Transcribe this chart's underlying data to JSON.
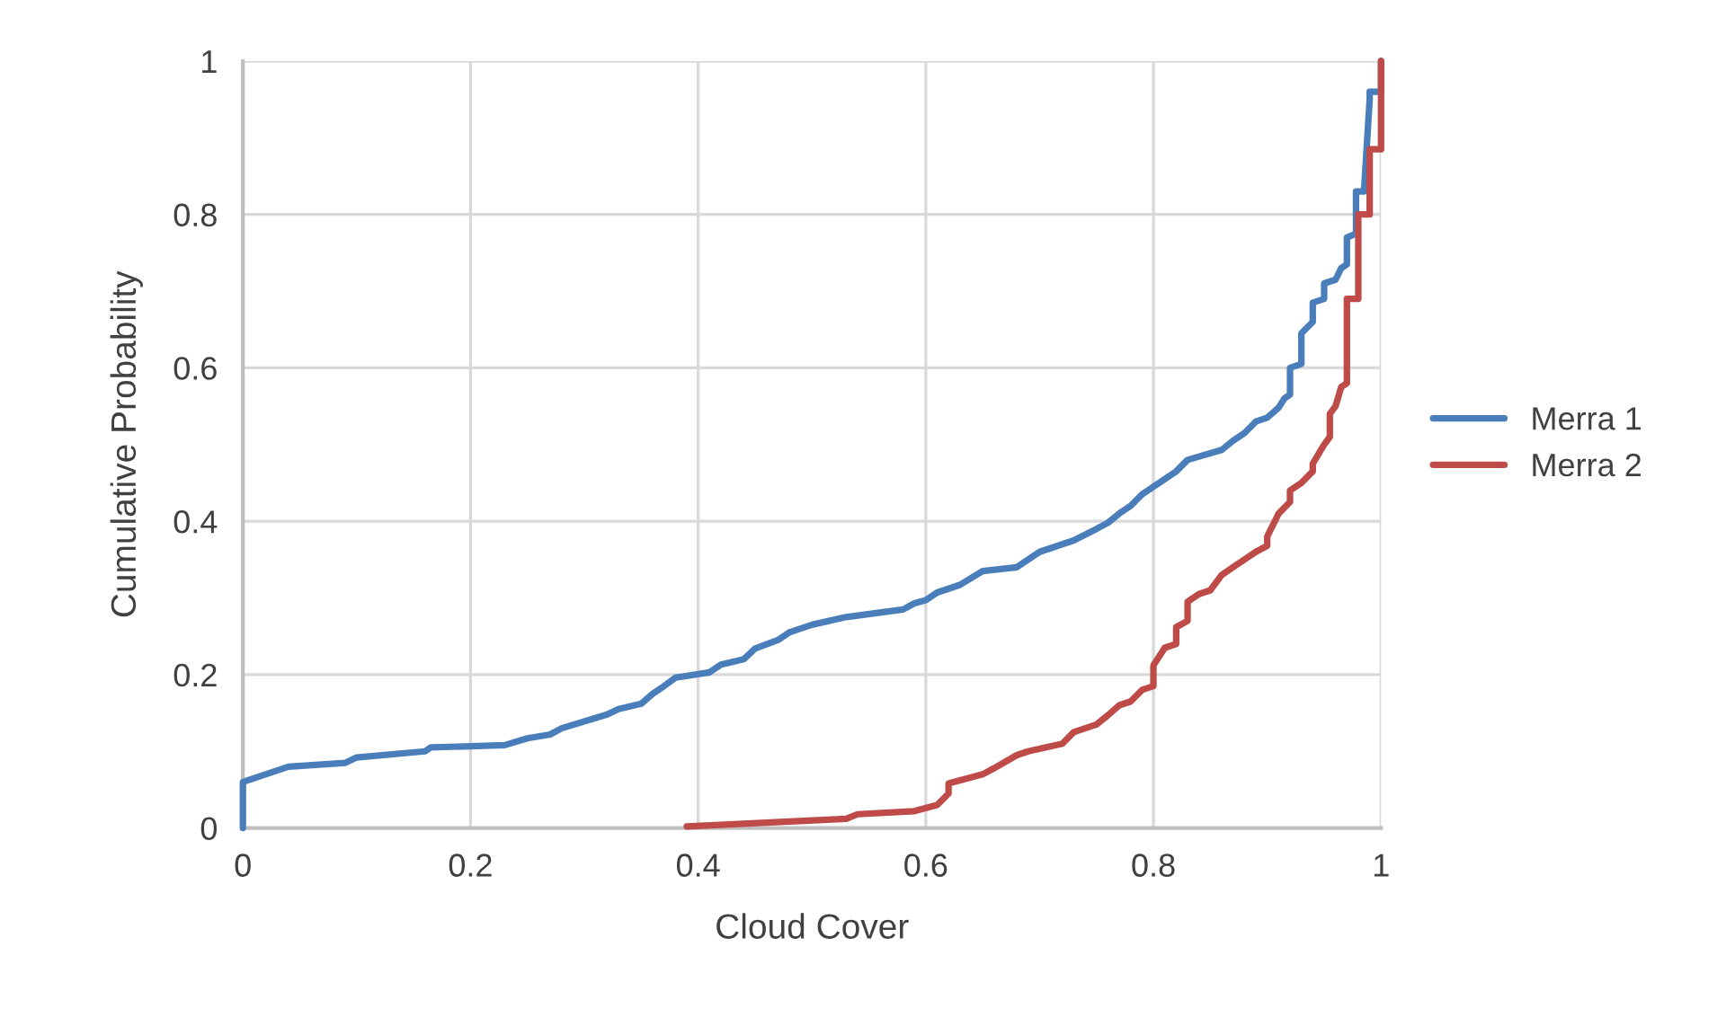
{
  "chart_data": {
    "type": "line",
    "xlabel": "Cloud Cover",
    "ylabel": "Cumulative Probability",
    "xlim": [
      0,
      1
    ],
    "ylim": [
      0,
      1
    ],
    "xticks": [
      0,
      0.2,
      0.4,
      0.6,
      0.8,
      1
    ],
    "yticks": [
      0,
      0.2,
      0.4,
      0.6,
      0.8,
      1
    ],
    "grid": true,
    "legend": "right",
    "marker": "none",
    "line_style": "solid",
    "series": [
      {
        "name": "Merra 1",
        "color": "#4a7ebb",
        "x": [
          0,
          0,
          0.04,
          0.09,
          0.1,
          0.16,
          0.165,
          0.23,
          0.25,
          0.27,
          0.28,
          0.32,
          0.33,
          0.35,
          0.36,
          0.37,
          0.38,
          0.41,
          0.42,
          0.44,
          0.45,
          0.47,
          0.48,
          0.5,
          0.53,
          0.58,
          0.59,
          0.6,
          0.61,
          0.63,
          0.65,
          0.68,
          0.69,
          0.7,
          0.73,
          0.75,
          0.76,
          0.77,
          0.78,
          0.79,
          0.8,
          0.81,
          0.82,
          0.83,
          0.86,
          0.87,
          0.88,
          0.89,
          0.9,
          0.91,
          0.915,
          0.92,
          0.92,
          0.93,
          0.93,
          0.94,
          0.94,
          0.95,
          0.95,
          0.96,
          0.965,
          0.97,
          0.97,
          0.978,
          0.978,
          0.985,
          0.99,
          0.99,
          1,
          1
        ],
        "values": [
          0,
          0.06,
          0.08,
          0.085,
          0.092,
          0.1,
          0.105,
          0.108,
          0.117,
          0.122,
          0.13,
          0.148,
          0.155,
          0.162,
          0.175,
          0.185,
          0.196,
          0.203,
          0.213,
          0.22,
          0.234,
          0.245,
          0.255,
          0.265,
          0.275,
          0.285,
          0.293,
          0.297,
          0.307,
          0.317,
          0.335,
          0.34,
          0.35,
          0.36,
          0.375,
          0.39,
          0.398,
          0.41,
          0.42,
          0.435,
          0.445,
          0.455,
          0.465,
          0.48,
          0.493,
          0.505,
          0.515,
          0.53,
          0.535,
          0.548,
          0.56,
          0.565,
          0.6,
          0.605,
          0.645,
          0.66,
          0.685,
          0.69,
          0.71,
          0.715,
          0.73,
          0.735,
          0.77,
          0.775,
          0.83,
          0.83,
          0.95,
          0.96,
          0.96,
          1
        ]
      },
      {
        "name": "Merra 2",
        "color": "#be4b48",
        "x": [
          0.39,
          0.53,
          0.54,
          0.59,
          0.61,
          0.62,
          0.62,
          0.65,
          0.66,
          0.68,
          0.69,
          0.72,
          0.73,
          0.75,
          0.76,
          0.77,
          0.78,
          0.79,
          0.8,
          0.8,
          0.81,
          0.82,
          0.82,
          0.83,
          0.83,
          0.84,
          0.85,
          0.86,
          0.87,
          0.88,
          0.89,
          0.9,
          0.9,
          0.91,
          0.92,
          0.92,
          0.93,
          0.94,
          0.94,
          0.95,
          0.955,
          0.955,
          0.96,
          0.965,
          0.97,
          0.97,
          0.98,
          0.98,
          0.99,
          0.99,
          1,
          1
        ],
        "values": [
          0.002,
          0.012,
          0.018,
          0.022,
          0.03,
          0.045,
          0.058,
          0.07,
          0.078,
          0.095,
          0.1,
          0.11,
          0.125,
          0.135,
          0.147,
          0.16,
          0.165,
          0.18,
          0.185,
          0.212,
          0.235,
          0.24,
          0.262,
          0.27,
          0.295,
          0.305,
          0.31,
          0.33,
          0.34,
          0.35,
          0.36,
          0.368,
          0.38,
          0.41,
          0.425,
          0.44,
          0.45,
          0.465,
          0.475,
          0.5,
          0.51,
          0.54,
          0.55,
          0.575,
          0.58,
          0.69,
          0.69,
          0.8,
          0.8,
          0.885,
          0.885,
          1
        ]
      }
    ]
  }
}
